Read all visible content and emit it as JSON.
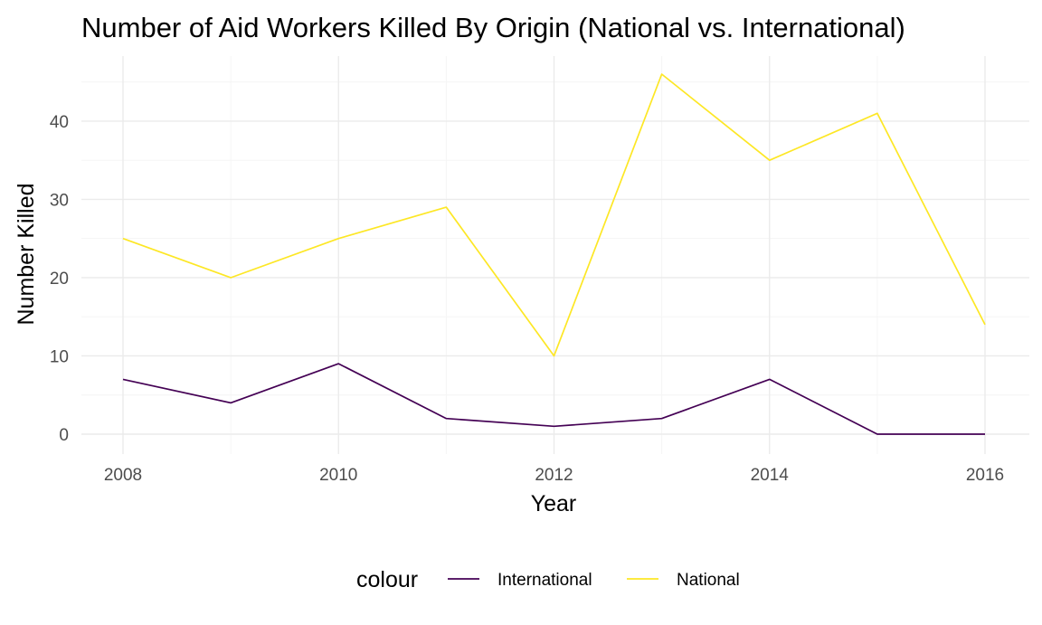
{
  "chart_data": {
    "type": "line",
    "title": "Number of Aid Workers Killed By Origin (National vs. International)",
    "xlabel": "Year",
    "ylabel": "Number Killed",
    "x": [
      2008,
      2009,
      2010,
      2011,
      2012,
      2013,
      2014,
      2015,
      2016
    ],
    "xlim": [
      2008,
      2016
    ],
    "ylim": [
      0,
      46
    ],
    "x_ticks": [
      "2008",
      "2010",
      "2012",
      "2014",
      "2016"
    ],
    "y_ticks": [
      "0",
      "10",
      "20",
      "30",
      "40"
    ],
    "grid": true,
    "legend": {
      "title": "colour",
      "placement": "bottom"
    },
    "series": [
      {
        "name": "International",
        "color": "#440154",
        "values": [
          7,
          4,
          9,
          2,
          1,
          2,
          7,
          0,
          0
        ]
      },
      {
        "name": "National",
        "color": "#fde725",
        "values": [
          25,
          20,
          25,
          29,
          10,
          46,
          35,
          41,
          14
        ]
      }
    ]
  }
}
